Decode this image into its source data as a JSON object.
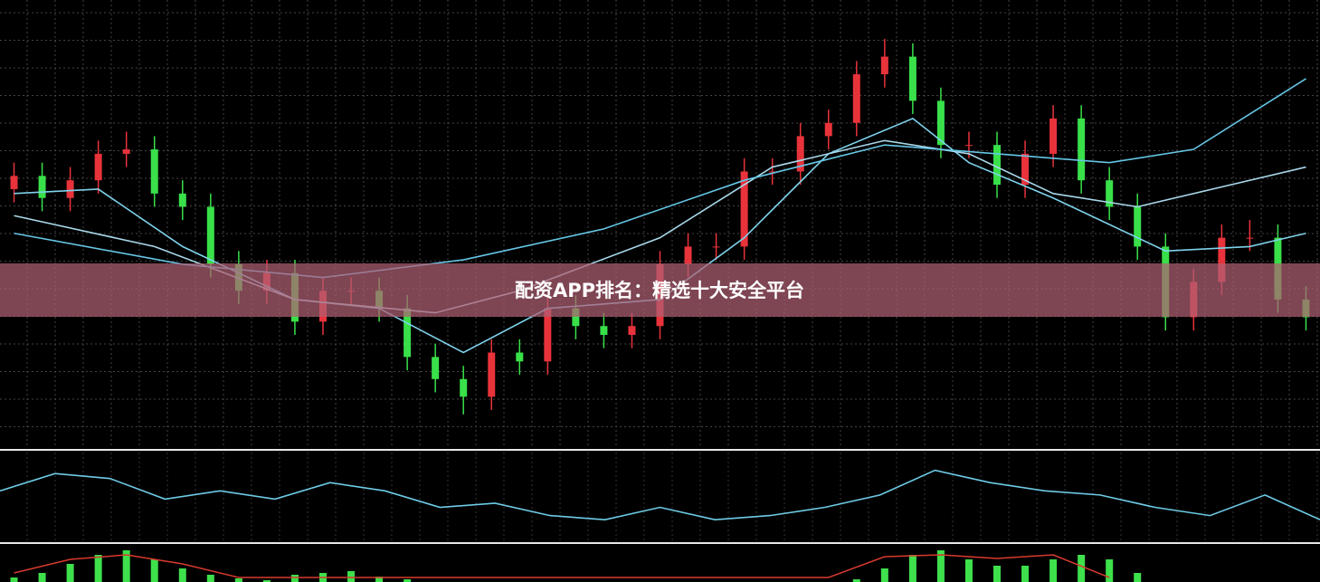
{
  "title": "配资APP排名：精选十大安全平台",
  "chart_data": [
    {
      "type": "candlestick",
      "ylim": [
        0,
        100
      ],
      "xlim": [
        -0.5,
        46.5
      ],
      "grid": true,
      "up_color": "#e8333b",
      "down_color": "#39e04a",
      "open": [
        58,
        61,
        56,
        60,
        66,
        67,
        57,
        54,
        41,
        35,
        39,
        28,
        35,
        35,
        31,
        20,
        15,
        11,
        21,
        19,
        31,
        27,
        25,
        27,
        41,
        45,
        45,
        62,
        62,
        70,
        73,
        84,
        88,
        78,
        68,
        68,
        59,
        66,
        74,
        60,
        54,
        45,
        29,
        37,
        47,
        47,
        33
      ],
      "close": [
        61,
        56,
        60,
        66,
        67,
        57,
        54,
        41,
        35,
        39,
        28,
        35,
        35,
        31,
        20,
        15,
        11,
        21,
        19,
        31,
        27,
        25,
        27,
        41,
        45,
        45,
        62,
        62,
        70,
        73,
        84,
        88,
        78,
        68,
        68,
        59,
        66,
        74,
        60,
        54,
        45,
        29,
        37,
        47,
        47,
        33,
        29
      ],
      "high": [
        64,
        64,
        63,
        69,
        71,
        70,
        60,
        57,
        44,
        42,
        42,
        38,
        38,
        38,
        34,
        23,
        18,
        24,
        24,
        34,
        34,
        30,
        30,
        44,
        48,
        48,
        65,
        65,
        73,
        76,
        87,
        92,
        91,
        81,
        71,
        71,
        69,
        77,
        77,
        63,
        57,
        48,
        40,
        50,
        51,
        50,
        36
      ],
      "low": [
        55,
        53,
        53,
        57,
        63,
        54,
        51,
        38,
        32,
        32,
        25,
        25,
        32,
        28,
        17,
        12,
        7,
        8,
        16,
        16,
        24,
        22,
        22,
        24,
        38,
        42,
        42,
        59,
        59,
        67,
        70,
        81,
        75,
        65,
        65,
        56,
        56,
        63,
        57,
        51,
        42,
        26,
        26,
        34,
        44,
        30,
        26
      ],
      "series": [
        {
          "color": "#7fd3ec",
          "x": [
            0,
            3,
            6,
            10,
            13,
            16,
            19,
            23,
            26,
            29,
            32,
            34,
            37,
            41,
            44,
            46
          ],
          "values": [
            57,
            58,
            45,
            33,
            31,
            21,
            31,
            33,
            47,
            66,
            74,
            64,
            56,
            44,
            45,
            48
          ]
        },
        {
          "color": "#a8d8ea",
          "x": [
            0,
            5,
            10,
            15,
            18,
            23,
            27,
            31,
            34,
            37,
            40,
            46
          ],
          "values": [
            52,
            45,
            33,
            30,
            35,
            47,
            63,
            69,
            66,
            57,
            54,
            63
          ]
        },
        {
          "color": "#66c6e6",
          "x": [
            0,
            6,
            11,
            16,
            21,
            26,
            31,
            35,
            39,
            42,
            46
          ],
          "values": [
            48,
            41,
            38,
            42,
            49,
            60,
            68,
            66,
            64,
            67,
            83
          ]
        }
      ]
    },
    {
      "type": "line",
      "ylim": [
        0,
        100
      ],
      "xlim": [
        0,
        24
      ],
      "color": "#6ecbe6",
      "values": [
        59,
        80,
        74,
        49,
        59,
        49,
        69,
        59,
        39,
        44,
        29,
        24,
        39,
        24,
        29,
        39,
        54,
        84,
        69,
        59,
        54,
        39,
        29,
        54,
        24
      ]
    },
    {
      "type": "histogram",
      "ylim": [
        0,
        40
      ],
      "xlim": [
        -0.5,
        46.5
      ],
      "color": "#3ee04c",
      "line_color": "#d83a2e",
      "values": [
        5,
        10,
        20,
        30,
        35,
        25,
        15,
        8,
        4,
        2,
        8,
        10,
        12,
        6,
        3,
        0,
        0,
        0,
        0,
        0,
        0,
        0,
        0,
        0,
        0,
        0,
        0,
        0,
        0,
        0,
        3,
        15,
        30,
        35,
        25,
        18,
        18,
        25,
        30,
        25,
        10,
        0,
        0,
        0,
        0,
        0,
        0
      ],
      "line_x": [
        0,
        2,
        4,
        6,
        8,
        29,
        31,
        33,
        35,
        37,
        39
      ],
      "line_values": [
        10,
        25,
        30,
        20,
        5,
        5,
        28,
        30,
        26,
        30,
        5
      ]
    }
  ]
}
